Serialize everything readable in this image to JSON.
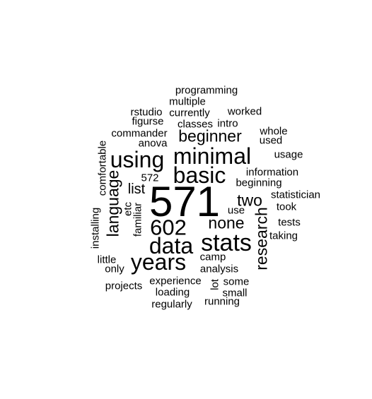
{
  "text_color": "#000000",
  "words": [
    {
      "text": "571"
    },
    {
      "text": "minimal"
    },
    {
      "text": "using"
    },
    {
      "text": "basic"
    },
    {
      "text": "stats"
    },
    {
      "text": "data"
    },
    {
      "text": "years"
    },
    {
      "text": "602"
    },
    {
      "text": "none"
    },
    {
      "text": "two"
    },
    {
      "text": "language"
    },
    {
      "text": "research"
    },
    {
      "text": "beginner"
    },
    {
      "text": "list"
    },
    {
      "text": "programming"
    },
    {
      "text": "multiple"
    },
    {
      "text": "rstudio"
    },
    {
      "text": "currently"
    },
    {
      "text": "worked"
    },
    {
      "text": "figurse"
    },
    {
      "text": "classes"
    },
    {
      "text": "intro"
    },
    {
      "text": "commander"
    },
    {
      "text": "whole"
    },
    {
      "text": "anova"
    },
    {
      "text": "used"
    },
    {
      "text": "comfortable"
    },
    {
      "text": "usage"
    },
    {
      "text": "572"
    },
    {
      "text": "information"
    },
    {
      "text": "beginning"
    },
    {
      "text": "statistician"
    },
    {
      "text": "etc"
    },
    {
      "text": "familiar"
    },
    {
      "text": "use"
    },
    {
      "text": "took"
    },
    {
      "text": "installing"
    },
    {
      "text": "tests"
    },
    {
      "text": "taking"
    },
    {
      "text": "camp"
    },
    {
      "text": "little"
    },
    {
      "text": "only"
    },
    {
      "text": "analysis"
    },
    {
      "text": "experience"
    },
    {
      "text": "lot"
    },
    {
      "text": "some"
    },
    {
      "text": "projects"
    },
    {
      "text": "loading"
    },
    {
      "text": "small"
    },
    {
      "text": "regularly"
    },
    {
      "text": "running"
    }
  ]
}
